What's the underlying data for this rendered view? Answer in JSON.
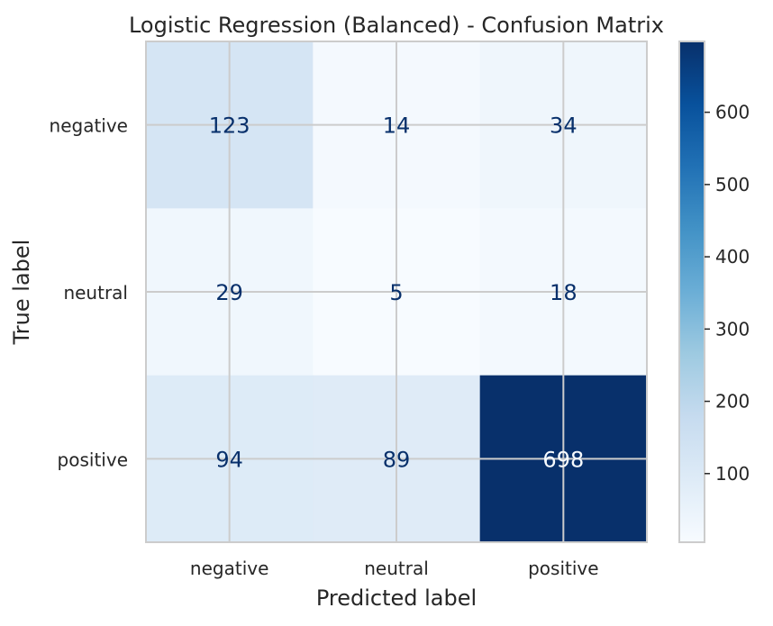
{
  "chart_data": {
    "type": "heatmap",
    "title": "Logistic Regression (Balanced) - Confusion Matrix",
    "xlabel": "Predicted label",
    "ylabel": "True label",
    "x_categories": [
      "negative",
      "neutral",
      "positive"
    ],
    "y_categories": [
      "negative",
      "neutral",
      "positive"
    ],
    "values": [
      [
        123,
        14,
        34
      ],
      [
        29,
        5,
        18
      ],
      [
        94,
        89,
        698
      ]
    ],
    "colormap": "Blues",
    "vmin": 5,
    "vmax": 698,
    "colorbar_ticks": [
      100,
      200,
      300,
      400,
      500,
      600
    ],
    "grid": true
  },
  "colors": {
    "text_dark": "#08306b",
    "text_light": "#f7fbff",
    "axis_text": "#262626",
    "grid": "#cccccc"
  }
}
